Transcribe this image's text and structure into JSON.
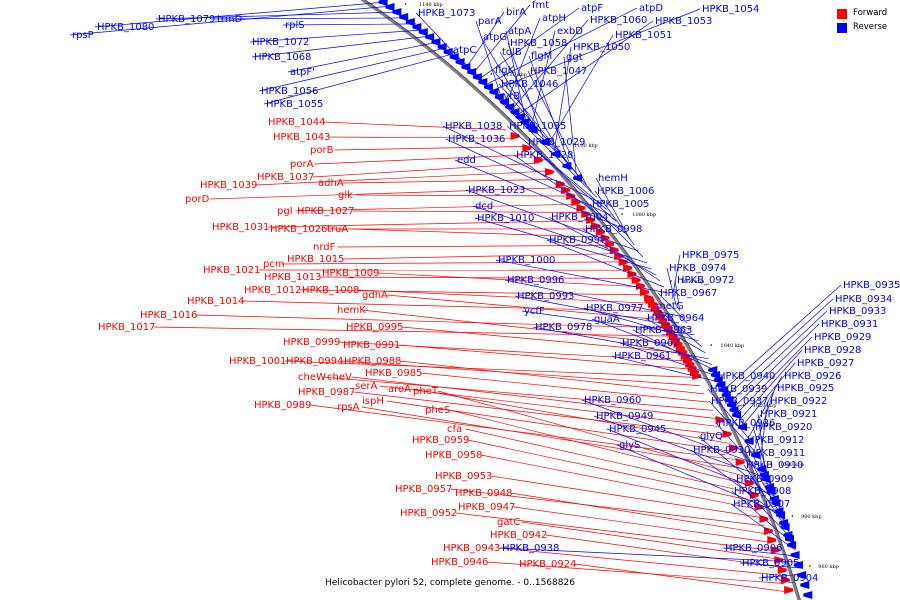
{
  "caption": "Helicobacter pylori 52, complete genome. - 0..1568826",
  "legend": [
    {
      "label": "Forward",
      "color": "#ff0000"
    },
    {
      "label": "Reverse",
      "color": "#0000ff"
    }
  ],
  "colors": {
    "forward": "#ff0000",
    "reverse": "#0000ff",
    "backbone": "#808080"
  },
  "ticks": [
    "1140 kbp",
    "1120 kbp",
    "1100 kbp",
    "1080 kbp",
    "1060 kbp",
    "1040 kbp",
    "1020 kbp",
    "1000 kbp",
    "980 kbp",
    "960 kbp"
  ],
  "forward_labels": [
    "HPKB_1044",
    "HPKB_1043",
    "porB",
    "porA",
    "HPKB_1037",
    "HPKB_1039",
    "adhA",
    "porD",
    "glk",
    "pgl",
    "HPKB_1027",
    "HPKB_1031",
    "HPKB_1026",
    "truA",
    "nrdF",
    "HPKB_1015",
    "pcm",
    "HPKB_1021",
    "HPKB_1013",
    "HPKB_1009",
    "HPKB_1012",
    "HPKB_1008",
    "HPKB_1014",
    "gdhA",
    "HPKB_1016",
    "HPKB_1017",
    "hemK",
    "HPKB_0995",
    "HPKB_0999",
    "HPKB_0991",
    "HPKB_1001",
    "HPKB_0994",
    "HPKB_0988",
    "HPKB_0985",
    "cheW",
    "cheV",
    "serA",
    "HPKB_0987",
    "aroA",
    "ispH",
    "HPKB_0989",
    "rpsA",
    "pheT",
    "pheS",
    "cfa",
    "HPKB_0959",
    "HPKB_0958",
    "HPKB_0953",
    "HPKB_0957",
    "HPKB_0948",
    "HPKB_0947",
    "HPKB_0952",
    "gatC",
    "HPKB_0942",
    "HPKB_0943",
    "HPKB_0946",
    "HPKB_0924"
  ],
  "reverse_labels": [
    "HPKB_1080",
    "rpsP",
    "HPKB_1079",
    "trmD",
    "rplS",
    "HPKB_1072",
    "HPKB_1068",
    "atpF'",
    "HPKB_1056",
    "HPKB_1055",
    "HPKB_1073",
    "birA",
    "fmt",
    "atpF",
    "atpD",
    "HPKB_1054",
    "parA",
    "atpH",
    "HPKB_1060",
    "HPKB_1053",
    "atpA",
    "exbD",
    "atpG",
    "HPKB_1058",
    "HPKB_1051",
    "HPKB_1050",
    "atpC",
    "tolB",
    "flgM",
    "ggt",
    "flgK",
    "HPKB_1047",
    "HPKB_1046",
    "uvrB",
    "HPKB_1038",
    "HPKB_1035",
    "HPKB_1036",
    "HPKB_1029",
    "edd",
    "HPKB_1028",
    "hemH",
    "HPKB_1006",
    "HPKB_1023",
    "HPKB_1005",
    "dcd",
    "HPKB_1010",
    "HPKB_1004",
    "HPKB_0998",
    "HPKB_0997",
    "HPKB_1000",
    "HPKB_0975",
    "HPKB_0974",
    "HPKB_0972",
    "HPKB_0996",
    "HPKB_0967",
    "HPKB_0993",
    "ycfF",
    "HPKB_0977",
    "metG",
    "HPKB_0964",
    "HPKB_0978",
    "guaA",
    "HPKB_0963",
    "HPKB_0962",
    "HPKB_0961",
    "HPKB_0935",
    "HPKB_0934",
    "HPKB_0933",
    "HPKB_0931",
    "HPKB_0929",
    "HPKB_0928",
    "HPKB_0927",
    "HPKB_0940",
    "HPKB_0926",
    "HPKB_0939",
    "HPKB_0925",
    "HPKB_0937",
    "HPKB_0922",
    "HPKB_0960",
    "HPKB_0921",
    "HPKB_0949",
    "HPKB_0936",
    "HPKB_0920",
    "HPKB_0945",
    "glyQ",
    "HPKB_0912",
    "glyS",
    "HPKB_0930",
    "HPKB_0911",
    "HPKB_0910",
    "HPKB_0909",
    "HPKB_0908",
    "HPKB_0907",
    "HPKB_0906",
    "HPKB_0938",
    "HPKB_0905",
    "HPKB_0904"
  ]
}
